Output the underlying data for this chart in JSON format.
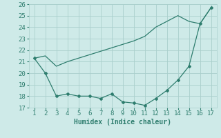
{
  "line1_x": [
    1,
    2,
    3,
    4,
    5,
    6,
    7,
    8,
    9,
    10,
    11,
    12,
    13,
    14,
    15,
    16,
    17
  ],
  "line1_y": [
    21.3,
    20.0,
    18.0,
    18.2,
    18.0,
    18.0,
    17.8,
    18.2,
    17.5,
    17.4,
    17.2,
    17.8,
    18.5,
    19.4,
    20.6,
    24.3,
    25.7
  ],
  "line2_x": [
    1,
    2,
    3,
    4,
    5,
    6,
    7,
    8,
    9,
    10,
    11,
    12,
    13,
    14,
    15,
    16,
    17
  ],
  "line2_y": [
    21.3,
    21.5,
    20.6,
    21.0,
    21.3,
    21.6,
    21.9,
    22.2,
    22.5,
    22.8,
    23.2,
    24.0,
    24.5,
    25.0,
    24.5,
    24.3,
    25.7
  ],
  "color": "#2e7d6e",
  "bg_color": "#ceeae8",
  "grid_color": "#aacfcc",
  "xlabel": "Humidex (Indice chaleur)",
  "xlim": [
    0.5,
    17.5
  ],
  "ylim": [
    17,
    26
  ],
  "yticks": [
    17,
    18,
    19,
    20,
    21,
    22,
    23,
    24,
    25,
    26
  ],
  "xticks": [
    1,
    2,
    3,
    4,
    5,
    6,
    7,
    8,
    9,
    10,
    11,
    12,
    13,
    14,
    15,
    16,
    17
  ],
  "xlabel_fontsize": 7,
  "tick_fontsize": 6.5
}
